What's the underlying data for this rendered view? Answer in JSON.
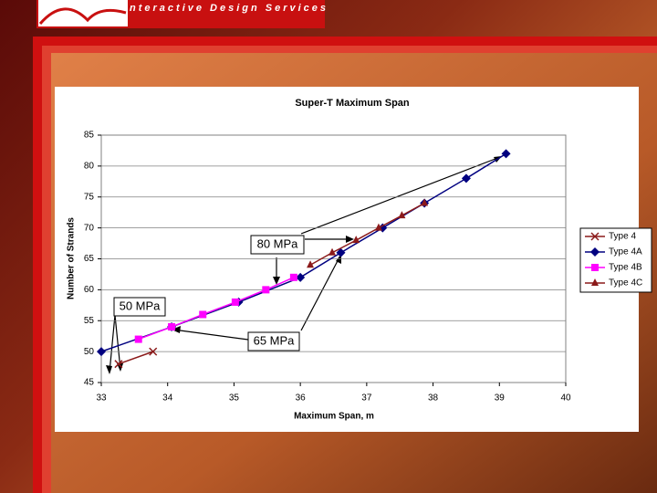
{
  "header": {
    "title": "Interactive Design Services"
  },
  "chart_data": {
    "type": "line",
    "title": "Super-T Maximum Span",
    "x_label": "Maximum Span, m",
    "y_label": "Number of Strands",
    "xlim": [
      33,
      40
    ],
    "xticks": [
      33,
      34,
      35,
      36,
      37,
      38,
      39,
      40
    ],
    "ylim": [
      45,
      85
    ],
    "yticks": [
      45,
      50,
      55,
      60,
      65,
      70,
      75,
      80,
      85
    ],
    "grid": true,
    "legend": "right",
    "series": [
      {
        "name": "Type 4",
        "color": "#8b1a1a",
        "marker": "x",
        "x": [
          33.26,
          33.78
        ],
        "values": [
          48,
          50
        ]
      },
      {
        "name": "Type 4A",
        "color": "#000080",
        "marker": "diamond",
        "x": [
          33.0,
          34.06,
          35.07,
          36.0,
          36.61,
          37.24,
          37.87,
          38.5,
          39.1
        ],
        "values": [
          50,
          54,
          58,
          62,
          66,
          70,
          74,
          78,
          82
        ]
      },
      {
        "name": "Type 4B",
        "color": "#ff00ff",
        "marker": "square",
        "x": [
          33.56,
          34.06,
          34.53,
          35.02,
          35.48,
          35.9
        ],
        "values": [
          52,
          54,
          56,
          58,
          60,
          62
        ]
      },
      {
        "name": "Type 4C",
        "color": "#8b1a1a",
        "marker": "triangle",
        "x": [
          36.15,
          36.48,
          36.84,
          37.18,
          37.53,
          37.87
        ],
        "values": [
          64,
          66,
          68,
          70,
          72,
          74
        ]
      }
    ],
    "annotations": [
      "50 MPa",
      "65 MPa",
      "80 MPa"
    ]
  }
}
